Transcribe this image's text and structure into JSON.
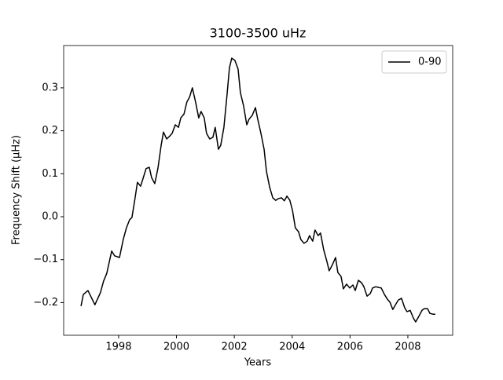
{
  "chart_data": {
    "type": "line",
    "title": "3100-3500 uHz",
    "xlabel": "Years",
    "ylabel": "Frequency Shift (μHz)",
    "xlim": [
      1996.1,
      2009.55
    ],
    "ylim": [
      -0.276,
      0.3985
    ],
    "xticks": [
      1998,
      2000,
      2002,
      2004,
      2006,
      2008
    ],
    "yticks": [
      {
        "value": -0.2,
        "label": "−0.2"
      },
      {
        "value": -0.1,
        "label": "−0.1"
      },
      {
        "value": 0.0,
        "label": "0.0"
      },
      0.1,
      0.2,
      0.3
    ],
    "legend": "upper right",
    "grid": false,
    "x": [
      1996.7,
      1996.78,
      1996.94,
      1997.18,
      1997.37,
      1997.48,
      1997.59,
      1997.76,
      1997.86,
      1998.03,
      1998.16,
      1998.27,
      1998.38,
      1998.46,
      1998.57,
      1998.65,
      1998.76,
      1998.84,
      1998.95,
      1999.06,
      1999.14,
      1999.25,
      1999.36,
      1999.47,
      1999.55,
      1999.66,
      1999.77,
      1999.85,
      1999.96,
      2000.07,
      2000.15,
      2000.26,
      2000.36,
      2000.45,
      2000.55,
      2000.66,
      2000.77,
      2000.85,
      2000.96,
      2001.04,
      2001.15,
      2001.26,
      2001.34,
      2001.45,
      2001.53,
      2001.64,
      2001.75,
      2001.83,
      2001.91,
      2002.02,
      2002.13,
      2002.21,
      2002.32,
      2002.43,
      2002.51,
      2002.62,
      2002.73,
      2002.81,
      2002.92,
      2003.03,
      2003.11,
      2003.22,
      2003.33,
      2003.43,
      2003.52,
      2003.63,
      2003.73,
      2003.82,
      2003.92,
      2004.01,
      2004.11,
      2004.22,
      2004.3,
      2004.41,
      2004.52,
      2004.6,
      2004.71,
      2004.79,
      2004.9,
      2004.98,
      2005.09,
      2005.2,
      2005.28,
      2005.39,
      2005.5,
      2005.58,
      2005.69,
      2005.77,
      2005.88,
      2005.99,
      2006.1,
      2006.18,
      2006.29,
      2006.4,
      2006.48,
      2006.59,
      2006.7,
      2006.78,
      2006.89,
      2007.0,
      2007.08,
      2007.19,
      2007.29,
      2007.38,
      2007.48,
      2007.59,
      2007.67,
      2007.78,
      2007.89,
      2007.97,
      2008.08,
      2008.19,
      2008.27,
      2008.38,
      2008.49,
      2008.57,
      2008.68,
      2008.76,
      2008.87,
      2008.95
    ],
    "series": [
      {
        "name": "0-90",
        "color": "#000000",
        "values": [
          -0.208,
          -0.181,
          -0.172,
          -0.205,
          -0.177,
          -0.15,
          -0.132,
          -0.08,
          -0.091,
          -0.095,
          -0.053,
          -0.026,
          -0.007,
          -0.002,
          0.044,
          0.08,
          0.071,
          0.088,
          0.112,
          0.115,
          0.091,
          0.077,
          0.113,
          0.166,
          0.197,
          0.181,
          0.188,
          0.194,
          0.214,
          0.208,
          0.23,
          0.239,
          0.267,
          0.278,
          0.3,
          0.267,
          0.23,
          0.245,
          0.23,
          0.194,
          0.181,
          0.185,
          0.208,
          0.157,
          0.166,
          0.208,
          0.285,
          0.346,
          0.369,
          0.364,
          0.344,
          0.289,
          0.258,
          0.214,
          0.227,
          0.236,
          0.254,
          0.227,
          0.194,
          0.157,
          0.106,
          0.069,
          0.044,
          0.038,
          0.042,
          0.044,
          0.037,
          0.048,
          0.038,
          0.015,
          -0.026,
          -0.035,
          -0.053,
          -0.062,
          -0.057,
          -0.044,
          -0.057,
          -0.031,
          -0.044,
          -0.038,
          -0.077,
          -0.104,
          -0.126,
          -0.112,
          -0.095,
          -0.13,
          -0.139,
          -0.168,
          -0.157,
          -0.166,
          -0.159,
          -0.172,
          -0.148,
          -0.154,
          -0.163,
          -0.185,
          -0.179,
          -0.166,
          -0.163,
          -0.165,
          -0.166,
          -0.181,
          -0.192,
          -0.199,
          -0.216,
          -0.203,
          -0.194,
          -0.19,
          -0.212,
          -0.221,
          -0.218,
          -0.236,
          -0.245,
          -0.232,
          -0.218,
          -0.214,
          -0.214,
          -0.225,
          -0.227,
          -0.227
        ]
      }
    ]
  }
}
